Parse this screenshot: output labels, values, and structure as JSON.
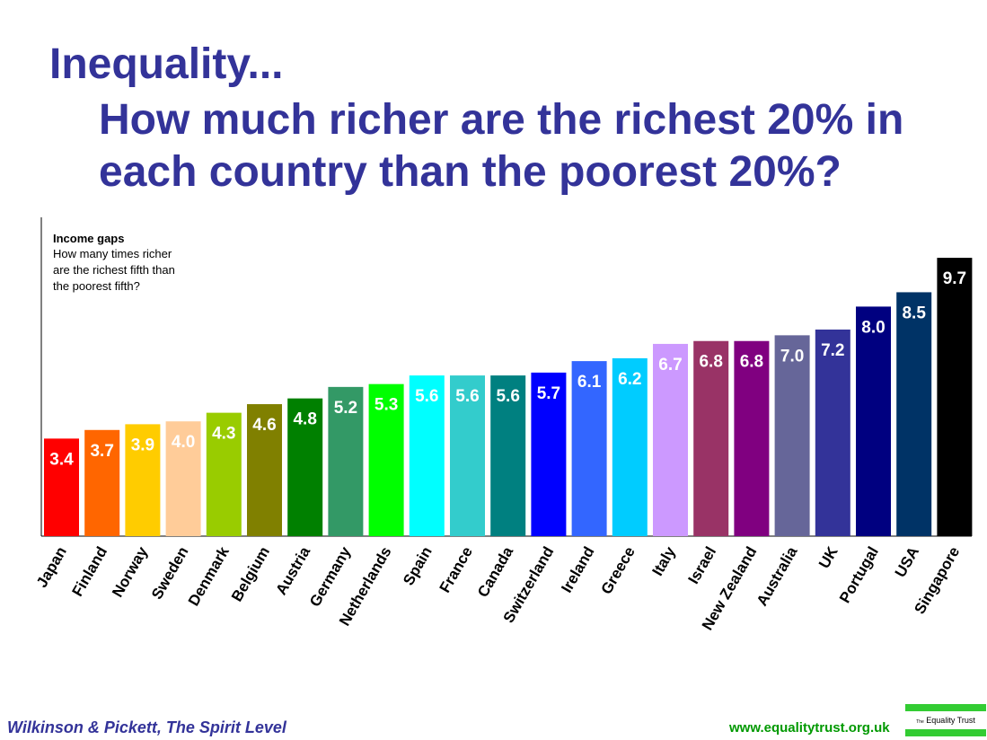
{
  "title": {
    "line1": "Inequality...",
    "line2": "How much richer are the richest 20% in each country than the poorest 20%?"
  },
  "footer": {
    "source": "Wilkinson & Pickett, The Spirit Level",
    "url": "www.equalitytrust.org.uk",
    "logo_prefix": "The",
    "logo_name": "Equality Trust"
  },
  "chart_data": {
    "type": "bar",
    "annotation_title": "Income gaps",
    "annotation_lines": [
      "How many times richer",
      "are the richest fifth than",
      "the poorest fifth?"
    ],
    "ylim": [
      0,
      10
    ],
    "categories": [
      "Japan",
      "Finland",
      "Norway",
      "Sweden",
      "Denmark",
      "Belgium",
      "Austria",
      "Germany",
      "Netherlands",
      "Spain",
      "France",
      "Canada",
      "Switzerland",
      "Ireland",
      "Greece",
      "Italy",
      "Israel",
      "New Zealand",
      "Australia",
      "UK",
      "Portugal",
      "USA",
      "Singapore"
    ],
    "values": [
      3.4,
      3.7,
      3.9,
      4.0,
      4.3,
      4.6,
      4.8,
      5.2,
      5.3,
      5.6,
      5.6,
      5.6,
      5.7,
      6.1,
      6.2,
      6.7,
      6.8,
      6.8,
      7.0,
      7.2,
      8.0,
      8.5,
      9.7
    ],
    "labels": [
      "3.4",
      "3.7",
      "3.9",
      "4.0",
      "4.3",
      "4.6",
      "4.8",
      "5.2",
      "5.3",
      "5.6",
      "5.6",
      "5.6",
      "5.7",
      "6.1",
      "6.2",
      "6.7",
      "6.8",
      "6.8",
      "7.0",
      "7.2",
      "8.0",
      "8.5",
      "9.7"
    ],
    "colors": [
      "#ff0000",
      "#ff6600",
      "#ffcc00",
      "#ffcc99",
      "#99cc00",
      "#808000",
      "#008000",
      "#339966",
      "#00ff00",
      "#00ffff",
      "#33cccc",
      "#008080",
      "#0000ff",
      "#3366ff",
      "#00ccff",
      "#cc99ff",
      "#993366",
      "#800080",
      "#666699",
      "#333399",
      "#000080",
      "#003366",
      "#000000"
    ]
  }
}
